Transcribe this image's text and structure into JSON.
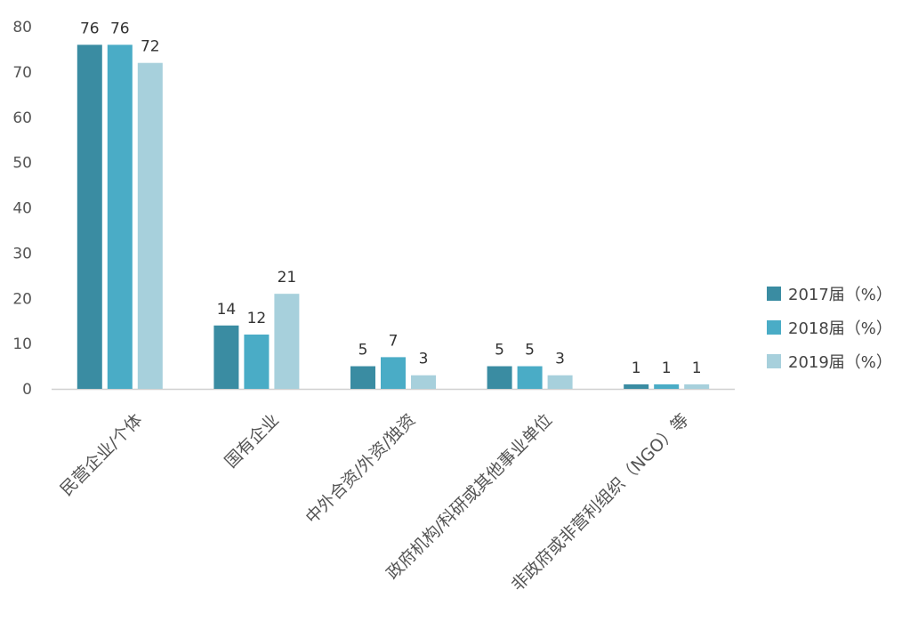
{
  "chart_data": {
    "type": "bar",
    "title": "",
    "xlabel": "",
    "ylabel": "",
    "ylim": [
      0,
      80
    ],
    "yticks": [
      0,
      10,
      20,
      30,
      40,
      50,
      60,
      70,
      80
    ],
    "grid": false,
    "legend_position": "right",
    "categories": [
      "民营企业/个体",
      "国有企业",
      "中外合资/外资/独资",
      "政府机构/科研或其他事业单位",
      "非政府或非营利组织（NGO）等"
    ],
    "series": [
      {
        "name": "2017届（%）",
        "color": "#3a8ca2",
        "values": [
          76,
          14,
          5,
          5,
          1
        ]
      },
      {
        "name": "2018届（%）",
        "color": "#4aacc6",
        "values": [
          76,
          12,
          7,
          5,
          1
        ]
      },
      {
        "name": "2019届（%）",
        "color": "#a7d0dc",
        "values": [
          72,
          21,
          3,
          3,
          1
        ]
      }
    ]
  }
}
